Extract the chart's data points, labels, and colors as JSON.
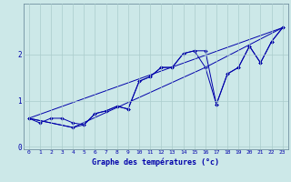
{
  "xlabel": "Graphe des températures (°c)",
  "background_color": "#cce8e8",
  "grid_color": "#aacccc",
  "line_color": "#0000aa",
  "xlim": [
    -0.5,
    23.5
  ],
  "ylim": [
    -0.05,
    3.1
  ],
  "yticks": [
    0,
    1,
    2
  ],
  "xticks": [
    0,
    1,
    2,
    3,
    4,
    5,
    6,
    7,
    8,
    9,
    10,
    11,
    12,
    13,
    14,
    15,
    16,
    17,
    18,
    19,
    20,
    21,
    22,
    23
  ],
  "line1_x": [
    0,
    1,
    2,
    3,
    4,
    5,
    6,
    7,
    8,
    9,
    10,
    11,
    12,
    13,
    14,
    15,
    16,
    17,
    18,
    19,
    20,
    21,
    22,
    23
  ],
  "line1_y": [
    0.62,
    0.52,
    0.62,
    0.62,
    0.52,
    0.48,
    0.72,
    0.78,
    0.88,
    0.82,
    1.42,
    1.52,
    1.72,
    1.72,
    2.02,
    2.08,
    2.08,
    0.92,
    1.58,
    1.72,
    2.18,
    1.82,
    2.28,
    2.58
  ],
  "line2_x": [
    0,
    4,
    5,
    6,
    7,
    8,
    9,
    10,
    11,
    12,
    13,
    14,
    15,
    16,
    17,
    18,
    19,
    20,
    21,
    22,
    23
  ],
  "line2_y": [
    0.62,
    0.42,
    0.48,
    0.72,
    0.78,
    0.88,
    0.82,
    1.42,
    1.52,
    1.72,
    1.72,
    2.02,
    2.08,
    1.72,
    0.92,
    1.58,
    1.72,
    2.18,
    1.82,
    2.28,
    2.58
  ],
  "line3_x": [
    0,
    23
  ],
  "line3_y": [
    0.62,
    2.58
  ],
  "line4_x": [
    0,
    4,
    16,
    23
  ],
  "line4_y": [
    0.62,
    0.42,
    1.72,
    2.58
  ]
}
